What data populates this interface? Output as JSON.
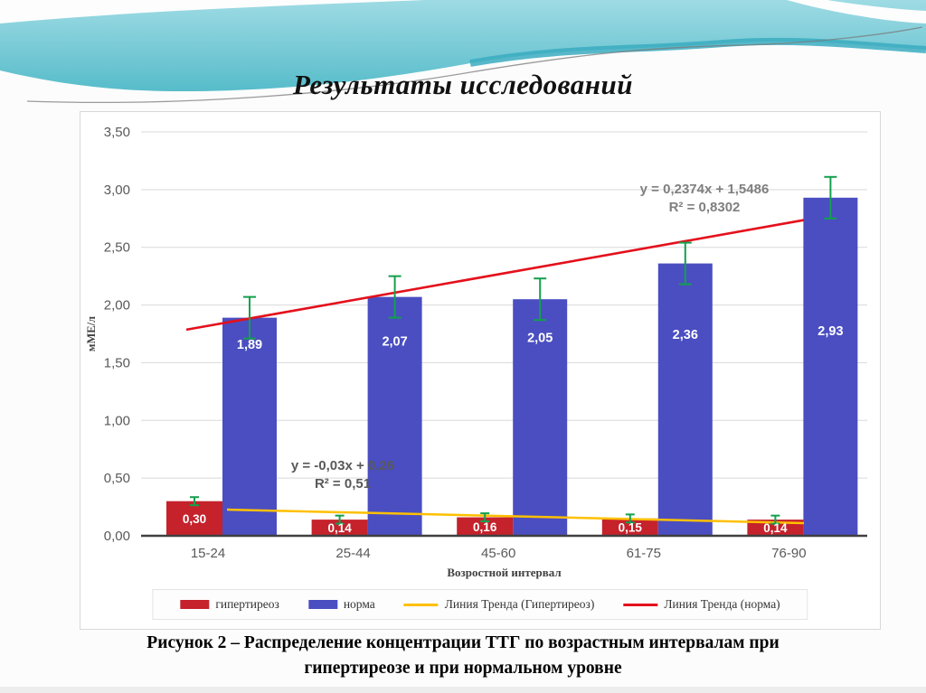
{
  "slide": {
    "title": "Результаты исследований",
    "caption": {
      "line1": "Рисунок 2 – Распределение концентрации ТТГ по возрастным интервалам при",
      "line2": "гипертиреозе и при нормальном уровне"
    }
  },
  "chart_data": {
    "type": "bar",
    "categories": [
      "15-24",
      "25-44",
      "45-60",
      "61-75",
      "76-90"
    ],
    "series": [
      {
        "name": "гипертиреоз",
        "color": "#c5222c",
        "values": [
          0.3,
          0.14,
          0.16,
          0.15,
          0.14
        ],
        "labels": [
          "0,30",
          "0,14",
          "0,16",
          "0,15",
          "0,14"
        ],
        "error_plus_minus": 0.035
      },
      {
        "name": "норма",
        "color": "#4a4ec1",
        "values": [
          1.89,
          2.07,
          2.05,
          2.36,
          2.93
        ],
        "labels": [
          "1,89",
          "2,07",
          "2,05",
          "2,36",
          "2,93"
        ],
        "error_plus_minus": 0.18
      }
    ],
    "trendlines": [
      {
        "name": "Линия Тренда (Гипертиреоз)",
        "color": "#ffc000",
        "equation": "y = -0,03x + 0,26",
        "r2": "R² = 0,51",
        "start_value": 0.227,
        "end_value": 0.11
      },
      {
        "name": "Линия Тренда (норма)",
        "color": "#e4101c",
        "equation": "y = 0,2374x + 1,5486",
        "r2": "R² = 0,8302",
        "start_value": 1.786,
        "end_value": 2.736
      }
    ],
    "error_bar_color": "#13a04d",
    "xlabel": "Возростной интервал",
    "ylabel": "мМЕ/л",
    "ylim": [
      0,
      3.5
    ],
    "ytick_step": 0.5,
    "ytick_labels": [
      "0,00",
      "0,50",
      "1,00",
      "1,50",
      "2,00",
      "2,50",
      "3,00",
      "3,50"
    ],
    "grid": true,
    "legend_position": "bottom"
  }
}
